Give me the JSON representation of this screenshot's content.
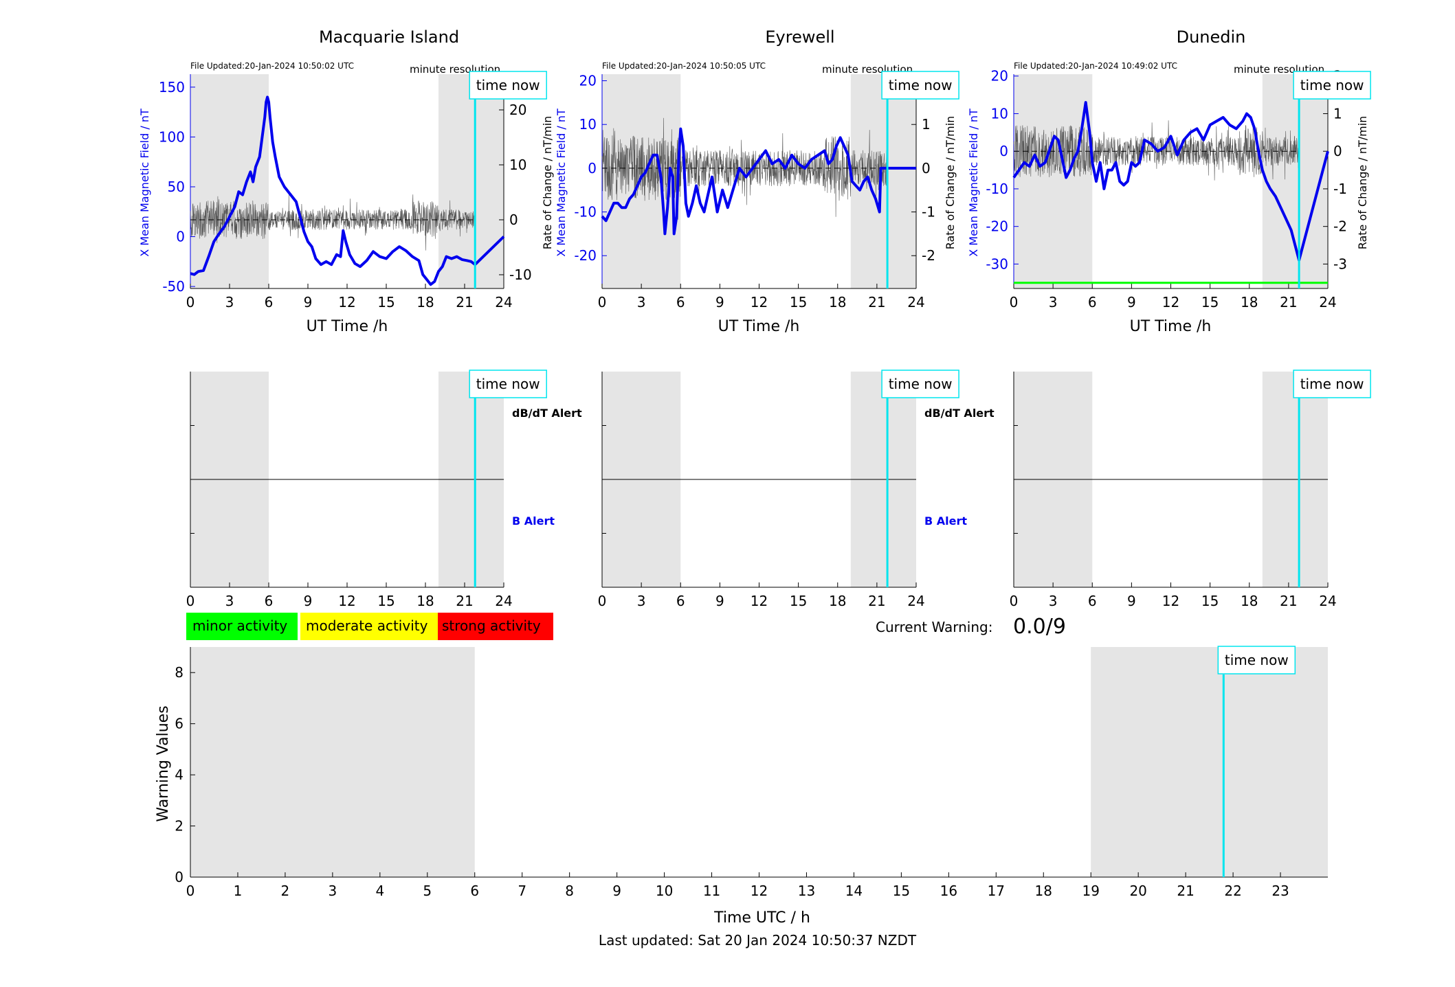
{
  "colors": {
    "shade": "#e5e5e5",
    "x_line": "#0000ee",
    "rate_line": "#555555",
    "time_now": "#00e5ee",
    "alert_green": "#00ff00",
    "minor": "#00ff00",
    "moderate": "#ffff00",
    "strong": "#ff0000",
    "b_alert_text": "#0000ee"
  },
  "chart_data": [
    {
      "id": "macquarie",
      "type": "line",
      "title": "Macquarie Island",
      "file_updated": "File Updated:20-Jan-2024 10:50:02 UTC",
      "resolution": "minute resolution",
      "time_now_label": "time now",
      "time_now": 21.8,
      "xlabel": "UT Time /h",
      "ylabel": "X Mean Magnetic Field / nT",
      "y2label": "Rate of Change / nT/min",
      "xlim": [
        0,
        24
      ],
      "ylim": [
        -52,
        163
      ],
      "y2lim": [
        -12.5,
        26.5
      ],
      "xticks": [
        0,
        3,
        6,
        9,
        12,
        15,
        18,
        21,
        24
      ],
      "yticks": [
        -50,
        0,
        50,
        100,
        150
      ],
      "y2ticks": [
        -10,
        0,
        10,
        20
      ],
      "shaded": [
        [
          0,
          6
        ],
        [
          19,
          24
        ]
      ],
      "x_series": {
        "name": "",
        "x": [
          0,
          0.3,
          0.6,
          1,
          1.4,
          1.8,
          2.2,
          2.6,
          3,
          3.4,
          3.7,
          4,
          4.3,
          4.6,
          4.8,
          5,
          5.3,
          5.5,
          5.7,
          5.8,
          5.9,
          6,
          6.1,
          6.3,
          6.5,
          6.8,
          7.2,
          7.5,
          7.8,
          8.1,
          8.4,
          8.7,
          9,
          9.3,
          9.6,
          10,
          10.4,
          10.8,
          11.2,
          11.5,
          11.7,
          11.9,
          12.2,
          12.6,
          13,
          13.5,
          14,
          14.5,
          15,
          15.5,
          16,
          16.5,
          17,
          17.5,
          17.8,
          18.1,
          18.4,
          18.7,
          19,
          19.3,
          19.6,
          20,
          20.4,
          20.8,
          21.2,
          21.5,
          21.8,
          24
        ],
        "values": [
          -37,
          -38,
          -35,
          -34,
          -20,
          -5,
          3,
          10,
          20,
          30,
          45,
          42,
          55,
          65,
          55,
          70,
          80,
          100,
          120,
          135,
          140,
          135,
          120,
          95,
          80,
          60,
          50,
          45,
          40,
          35,
          20,
          5,
          -5,
          -10,
          -22,
          -28,
          -25,
          -28,
          -18,
          -20,
          6,
          -5,
          -18,
          -27,
          -30,
          -24,
          -15,
          -20,
          -22,
          -15,
          -10,
          -14,
          -20,
          -24,
          -38,
          -43,
          -48,
          -45,
          -35,
          -30,
          -20,
          -22,
          -20,
          -23,
          -24,
          -25,
          -28,
          0
        ]
      },
      "rate_series": {
        "name": "",
        "range": [
          -9,
          5
        ],
        "baseline": 0
      }
    },
    {
      "id": "eyrewell",
      "type": "line",
      "title": "Eyrewell",
      "file_updated": "File Updated:20-Jan-2024 10:50:05 UTC",
      "resolution": "minute resolution",
      "time_now_label": "time now",
      "time_now": 21.8,
      "xlabel": "UT Time /h",
      "ylabel": "X Mean Magnetic Field / nT",
      "y2label": "Rate of Change / nT/min",
      "xlim": [
        0,
        24
      ],
      "ylim": [
        -27.5,
        21.5
      ],
      "y2lim": [
        -2.75,
        2.15
      ],
      "xticks": [
        0,
        3,
        6,
        9,
        12,
        15,
        18,
        21,
        24
      ],
      "yticks": [
        -20,
        -10,
        0,
        10,
        20
      ],
      "y2ticks": [
        -2,
        -1,
        0,
        1,
        2
      ],
      "shaded": [
        [
          0,
          6
        ],
        [
          19,
          24
        ]
      ],
      "x_series": {
        "name": "",
        "x": [
          0,
          0.3,
          0.6,
          0.9,
          1.2,
          1.5,
          1.8,
          2.1,
          2.4,
          2.7,
          3,
          3.3,
          3.6,
          3.9,
          4.2,
          4.5,
          4.7,
          4.8,
          5,
          5.2,
          5.4,
          5.5,
          5.7,
          5.85,
          6,
          6.2,
          6.4,
          6.6,
          6.9,
          7.2,
          7.5,
          7.8,
          8.1,
          8.4,
          8.8,
          9.2,
          9.6,
          10,
          10.5,
          11,
          11.5,
          12,
          12.5,
          13,
          13.5,
          14,
          14.5,
          15,
          15.5,
          16,
          16.5,
          17,
          17.3,
          17.6,
          17.9,
          18.2,
          18.5,
          18.8,
          19.1,
          19.4,
          19.7,
          20,
          20.3,
          20.6,
          20.9,
          21.1,
          21.2,
          21.3,
          24
        ],
        "values": [
          -11,
          -12,
          -10,
          -8,
          -8,
          -9,
          -9,
          -7,
          -6,
          -4,
          -2,
          -1,
          1,
          3,
          3,
          -2,
          -10,
          -15,
          -9,
          0,
          -2,
          -15,
          -11,
          2,
          9,
          5,
          -8,
          -11,
          -8,
          -4,
          -8,
          -10,
          -6,
          -2,
          -10,
          -5,
          -9,
          -5,
          0,
          -2,
          0,
          2,
          4,
          1,
          2,
          0,
          3,
          1,
          0,
          2,
          3,
          4,
          1,
          2,
          5,
          7,
          5,
          3,
          -3,
          -4,
          -5,
          -3,
          -2,
          -5,
          -7,
          -9,
          -10,
          0,
          0
        ]
      },
      "rate_series": {
        "name": "",
        "range": [
          -1.6,
          1.4
        ],
        "baseline": 0
      }
    },
    {
      "id": "dunedin",
      "type": "line",
      "title": "Dunedin",
      "file_updated": "File Updated:20-Jan-2024 10:49:02 UTC",
      "resolution": "minute resolution",
      "time_now_label": "time now",
      "time_now": 21.8,
      "xlabel": "UT Time /h",
      "ylabel": "X Mean Magnetic Field / nT",
      "y2label": "Rate of Change / nT/min",
      "xlim": [
        0,
        24
      ],
      "ylim": [
        -36.5,
        20.5
      ],
      "y2lim": [
        -3.65,
        2.05
      ],
      "xticks": [
        0,
        3,
        6,
        9,
        12,
        15,
        18,
        21,
        24
      ],
      "yticks": [
        -30,
        -20,
        -10,
        0,
        10,
        20
      ],
      "y2ticks": [
        -3,
        -2,
        -1,
        0,
        1,
        2
      ],
      "shaded": [
        [
          0,
          6
        ],
        [
          19,
          24
        ]
      ],
      "alert_level": -35,
      "x_series": {
        "name": "",
        "x": [
          0,
          0.4,
          0.8,
          1.2,
          1.6,
          2,
          2.4,
          2.8,
          3.1,
          3.4,
          3.7,
          4,
          4.3,
          4.6,
          4.9,
          5.2,
          5.5,
          5.8,
          6,
          6.3,
          6.6,
          6.9,
          7.2,
          7.5,
          7.8,
          8.1,
          8.4,
          8.7,
          9,
          9.3,
          9.6,
          10,
          10.5,
          11,
          11.5,
          12,
          12.5,
          13,
          13.5,
          14,
          14.5,
          15,
          15.5,
          16,
          16.5,
          17,
          17.5,
          17.8,
          18.1,
          18.4,
          18.7,
          19,
          19.3,
          19.6,
          20,
          20.4,
          20.8,
          21.2,
          21.5,
          21.8,
          24
        ],
        "values": [
          -7,
          -5,
          -3,
          -4,
          -1,
          -4,
          -3,
          1,
          4,
          3,
          -2,
          -7,
          -5,
          -2,
          0,
          6,
          13,
          5,
          -3,
          -8,
          -3,
          -10,
          -5,
          -5,
          -3,
          -8,
          -9,
          -8,
          -3,
          -4,
          -3,
          3,
          2,
          0,
          1,
          4,
          -1,
          3,
          5,
          6,
          3,
          7,
          8,
          9,
          7,
          6,
          8,
          10,
          9,
          6,
          0,
          -5,
          -8,
          -10,
          -12,
          -15,
          -18,
          -21,
          -25,
          -29,
          0
        ]
      },
      "rate_series": {
        "name": "",
        "range": [
          -1.8,
          1.0
        ],
        "baseline": 0
      }
    },
    {
      "id": "macquarie-alert",
      "type": "line",
      "xlim": [
        0,
        24
      ],
      "xticks": [
        0,
        3,
        6,
        9,
        12,
        15,
        18,
        21,
        24
      ],
      "shaded": [
        [
          0,
          6
        ],
        [
          19,
          24
        ]
      ],
      "time_now": 21.8,
      "time_now_label": "time now",
      "labels": [
        "dB/dT Alert",
        "B Alert"
      ]
    },
    {
      "id": "eyrewell-alert",
      "type": "line",
      "xlim": [
        0,
        24
      ],
      "xticks": [
        0,
        3,
        6,
        9,
        12,
        15,
        18,
        21,
        24
      ],
      "shaded": [
        [
          0,
          6
        ],
        [
          19,
          24
        ]
      ],
      "time_now": 21.8,
      "time_now_label": "time now",
      "labels": [
        "dB/dT Alert",
        "B Alert"
      ]
    },
    {
      "id": "dunedin-alert",
      "type": "line",
      "xlim": [
        0,
        24
      ],
      "xticks": [
        0,
        3,
        6,
        9,
        12,
        15,
        18,
        21,
        24
      ],
      "shaded": [
        [
          0,
          6
        ],
        [
          19,
          24
        ]
      ],
      "time_now": 21.8,
      "time_now_label": "time now",
      "labels": []
    },
    {
      "id": "warning",
      "type": "line",
      "xlabel": "Time UTC / h",
      "ylabel": "Warning Values",
      "xlim": [
        0,
        24
      ],
      "ylim": [
        0,
        9
      ],
      "xticks": [
        0,
        1,
        2,
        3,
        4,
        5,
        6,
        7,
        8,
        9,
        10,
        11,
        12,
        13,
        14,
        15,
        16,
        17,
        18,
        19,
        20,
        21,
        22,
        23
      ],
      "yticks": [
        0,
        2,
        4,
        6,
        8
      ],
      "shaded": [
        [
          0,
          6
        ],
        [
          19,
          24
        ]
      ],
      "time_now": 21.8,
      "time_now_label": "time now",
      "series": []
    }
  ],
  "legend": {
    "minor": "minor activity",
    "moderate": "moderate activity",
    "strong": "strong activity"
  },
  "current_warning": {
    "label": "Current Warning:",
    "value": "0.0/9"
  },
  "footer": "Last updated: Sat 20 Jan 2024 10:50:37 NZDT"
}
